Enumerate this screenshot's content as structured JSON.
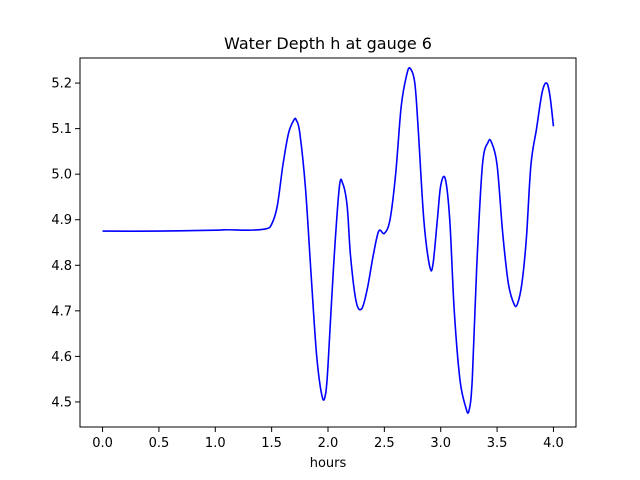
{
  "chart_data": {
    "type": "line",
    "title": "Water Depth h at gauge 6",
    "xlabel": "hours",
    "ylabel": "",
    "xlim": [
      -0.2,
      4.2
    ],
    "ylim": [
      4.445,
      5.255
    ],
    "x_ticks": [
      "0.0",
      "0.5",
      "1.0",
      "1.5",
      "2.0",
      "2.5",
      "3.0",
      "3.5",
      "4.0"
    ],
    "y_ticks": [
      "4.5",
      "4.6",
      "4.7",
      "4.8",
      "4.9",
      "5.0",
      "5.1",
      "5.2"
    ],
    "grid": false,
    "legend": "none",
    "series": [
      {
        "color": "#0000ff",
        "x": [
          0.0,
          0.5,
          1.0,
          1.1,
          1.3,
          1.45,
          1.5,
          1.55,
          1.6,
          1.65,
          1.7,
          1.72,
          1.75,
          1.8,
          1.85,
          1.9,
          1.95,
          1.98,
          2.0,
          2.05,
          2.1,
          2.13,
          2.17,
          2.2,
          2.25,
          2.3,
          2.35,
          2.4,
          2.45,
          2.5,
          2.55,
          2.6,
          2.65,
          2.7,
          2.73,
          2.77,
          2.8,
          2.85,
          2.9,
          2.93,
          2.97,
          3.0,
          3.04,
          3.08,
          3.12,
          3.17,
          3.22,
          3.25,
          3.28,
          3.32,
          3.37,
          3.42,
          3.45,
          3.5,
          3.55,
          3.6,
          3.65,
          3.68,
          3.72,
          3.76,
          3.8,
          3.85,
          3.9,
          3.94,
          3.97,
          4.0
        ],
        "y": [
          4.875,
          4.875,
          4.877,
          4.878,
          4.877,
          4.88,
          4.89,
          4.93,
          5.02,
          5.09,
          5.12,
          5.118,
          5.09,
          4.97,
          4.78,
          4.6,
          4.51,
          4.52,
          4.58,
          4.8,
          4.97,
          4.98,
          4.93,
          4.82,
          4.72,
          4.705,
          4.75,
          4.82,
          4.875,
          4.87,
          4.9,
          5.0,
          5.15,
          5.22,
          5.232,
          5.2,
          5.1,
          4.9,
          4.8,
          4.8,
          4.9,
          4.975,
          4.99,
          4.9,
          4.7,
          4.55,
          4.49,
          4.48,
          4.55,
          4.8,
          5.02,
          5.07,
          5.07,
          5.02,
          4.87,
          4.76,
          4.715,
          4.715,
          4.76,
          4.86,
          5.02,
          5.1,
          5.18,
          5.2,
          5.17,
          5.105
        ]
      }
    ]
  }
}
